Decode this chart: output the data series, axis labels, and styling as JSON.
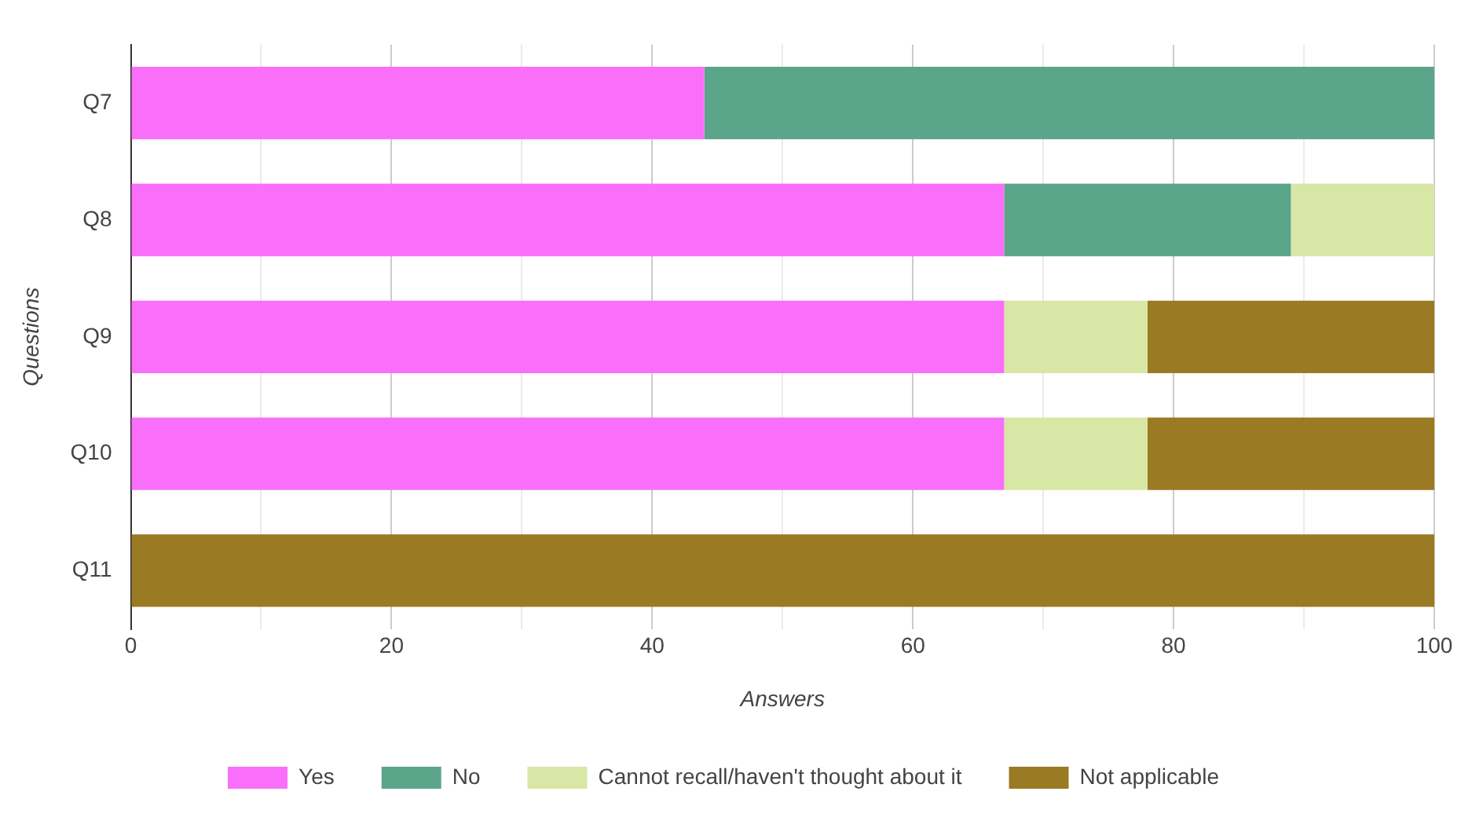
{
  "chart_data": {
    "type": "bar",
    "orientation": "horizontal",
    "stacked": true,
    "xlabel": "Answers",
    "ylabel": "Questions",
    "categories": [
      "Q7",
      "Q8",
      "Q9",
      "Q10",
      "Q11"
    ],
    "series": [
      {
        "name": "Yes",
        "color": "#fa6ffa",
        "values": [
          44,
          67,
          67,
          67,
          0
        ]
      },
      {
        "name": "No",
        "color": "#5ba58a",
        "values": [
          56,
          22,
          0,
          0,
          0
        ]
      },
      {
        "name": "Cannot recall/haven't thought about it",
        "color": "#d8e6a6",
        "values": [
          0,
          11,
          11,
          11,
          0
        ]
      },
      {
        "name": "Not applicable",
        "color": "#9a7a22",
        "values": [
          0,
          0,
          22,
          22,
          100
        ]
      }
    ],
    "xlim": [
      0,
      100
    ],
    "xticks": [
      0,
      {
        "value": 10,
        "label": null
      },
      20,
      {
        "value": 30,
        "label": null
      },
      40,
      {
        "value": 50,
        "label": null
      },
      60,
      {
        "value": 70,
        "label": null
      },
      80,
      {
        "value": 90,
        "label": null
      },
      100
    ],
    "grid": "x",
    "legend": "bottom"
  }
}
